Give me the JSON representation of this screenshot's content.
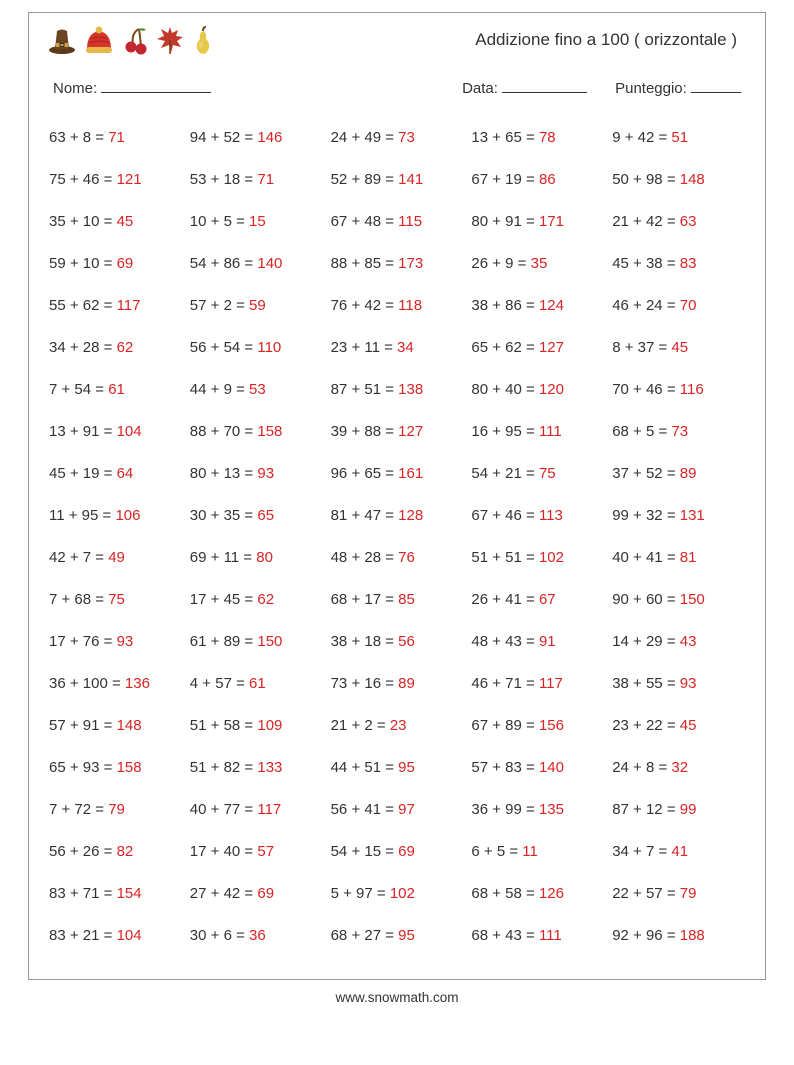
{
  "title": "Addizione fino a 100 ( orizzontale )",
  "labels": {
    "name": "Nome:",
    "date": "Data:",
    "score": "Punteggio:"
  },
  "footer": "www.snowmath.com",
  "answer_color": "#d82424",
  "text_color": "#333333",
  "border_color": "#999999",
  "rows": 20,
  "cols": 5,
  "problems": [
    {
      "a": 63,
      "b": 8,
      "s": 71
    },
    {
      "a": 94,
      "b": 52,
      "s": 146
    },
    {
      "a": 24,
      "b": 49,
      "s": 73
    },
    {
      "a": 13,
      "b": 65,
      "s": 78
    },
    {
      "a": 9,
      "b": 42,
      "s": 51
    },
    {
      "a": 75,
      "b": 46,
      "s": 121
    },
    {
      "a": 53,
      "b": 18,
      "s": 71
    },
    {
      "a": 52,
      "b": 89,
      "s": 141
    },
    {
      "a": 67,
      "b": 19,
      "s": 86
    },
    {
      "a": 50,
      "b": 98,
      "s": 148
    },
    {
      "a": 35,
      "b": 10,
      "s": 45
    },
    {
      "a": 10,
      "b": 5,
      "s": 15
    },
    {
      "a": 67,
      "b": 48,
      "s": 115
    },
    {
      "a": 80,
      "b": 91,
      "s": 171
    },
    {
      "a": 21,
      "b": 42,
      "s": 63
    },
    {
      "a": 59,
      "b": 10,
      "s": 69
    },
    {
      "a": 54,
      "b": 86,
      "s": 140
    },
    {
      "a": 88,
      "b": 85,
      "s": 173
    },
    {
      "a": 26,
      "b": 9,
      "s": 35
    },
    {
      "a": 45,
      "b": 38,
      "s": 83
    },
    {
      "a": 55,
      "b": 62,
      "s": 117
    },
    {
      "a": 57,
      "b": 2,
      "s": 59
    },
    {
      "a": 76,
      "b": 42,
      "s": 118
    },
    {
      "a": 38,
      "b": 86,
      "s": 124
    },
    {
      "a": 46,
      "b": 24,
      "s": 70
    },
    {
      "a": 34,
      "b": 28,
      "s": 62
    },
    {
      "a": 56,
      "b": 54,
      "s": 110
    },
    {
      "a": 23,
      "b": 11,
      "s": 34
    },
    {
      "a": 65,
      "b": 62,
      "s": 127
    },
    {
      "a": 8,
      "b": 37,
      "s": 45
    },
    {
      "a": 7,
      "b": 54,
      "s": 61
    },
    {
      "a": 44,
      "b": 9,
      "s": 53
    },
    {
      "a": 87,
      "b": 51,
      "s": 138
    },
    {
      "a": 80,
      "b": 40,
      "s": 120
    },
    {
      "a": 70,
      "b": 46,
      "s": 116
    },
    {
      "a": 13,
      "b": 91,
      "s": 104
    },
    {
      "a": 88,
      "b": 70,
      "s": 158
    },
    {
      "a": 39,
      "b": 88,
      "s": 127
    },
    {
      "a": 16,
      "b": 95,
      "s": 111
    },
    {
      "a": 68,
      "b": 5,
      "s": 73
    },
    {
      "a": 45,
      "b": 19,
      "s": 64
    },
    {
      "a": 80,
      "b": 13,
      "s": 93
    },
    {
      "a": 96,
      "b": 65,
      "s": 161
    },
    {
      "a": 54,
      "b": 21,
      "s": 75
    },
    {
      "a": 37,
      "b": 52,
      "s": 89
    },
    {
      "a": 11,
      "b": 95,
      "s": 106
    },
    {
      "a": 30,
      "b": 35,
      "s": 65
    },
    {
      "a": 81,
      "b": 47,
      "s": 128
    },
    {
      "a": 67,
      "b": 46,
      "s": 113
    },
    {
      "a": 99,
      "b": 32,
      "s": 131
    },
    {
      "a": 42,
      "b": 7,
      "s": 49
    },
    {
      "a": 69,
      "b": 11,
      "s": 80
    },
    {
      "a": 48,
      "b": 28,
      "s": 76
    },
    {
      "a": 51,
      "b": 51,
      "s": 102
    },
    {
      "a": 40,
      "b": 41,
      "s": 81
    },
    {
      "a": 7,
      "b": 68,
      "s": 75
    },
    {
      "a": 17,
      "b": 45,
      "s": 62
    },
    {
      "a": 68,
      "b": 17,
      "s": 85
    },
    {
      "a": 26,
      "b": 41,
      "s": 67
    },
    {
      "a": 90,
      "b": 60,
      "s": 150
    },
    {
      "a": 17,
      "b": 76,
      "s": 93
    },
    {
      "a": 61,
      "b": 89,
      "s": 150
    },
    {
      "a": 38,
      "b": 18,
      "s": 56
    },
    {
      "a": 48,
      "b": 43,
      "s": 91
    },
    {
      "a": 14,
      "b": 29,
      "s": 43
    },
    {
      "a": 36,
      "b": 100,
      "s": 136
    },
    {
      "a": 4,
      "b": 57,
      "s": 61
    },
    {
      "a": 73,
      "b": 16,
      "s": 89
    },
    {
      "a": 46,
      "b": 71,
      "s": 117
    },
    {
      "a": 38,
      "b": 55,
      "s": 93
    },
    {
      "a": 57,
      "b": 91,
      "s": 148
    },
    {
      "a": 51,
      "b": 58,
      "s": 109
    },
    {
      "a": 21,
      "b": 2,
      "s": 23
    },
    {
      "a": 67,
      "b": 89,
      "s": 156
    },
    {
      "a": 23,
      "b": 22,
      "s": 45
    },
    {
      "a": 65,
      "b": 93,
      "s": 158
    },
    {
      "a": 51,
      "b": 82,
      "s": 133
    },
    {
      "a": 44,
      "b": 51,
      "s": 95
    },
    {
      "a": 57,
      "b": 83,
      "s": 140
    },
    {
      "a": 24,
      "b": 8,
      "s": 32
    },
    {
      "a": 7,
      "b": 72,
      "s": 79
    },
    {
      "a": 40,
      "b": 77,
      "s": 117
    },
    {
      "a": 56,
      "b": 41,
      "s": 97
    },
    {
      "a": 36,
      "b": 99,
      "s": 135
    },
    {
      "a": 87,
      "b": 12,
      "s": 99
    },
    {
      "a": 56,
      "b": 26,
      "s": 82
    },
    {
      "a": 17,
      "b": 40,
      "s": 57
    },
    {
      "a": 54,
      "b": 15,
      "s": 69
    },
    {
      "a": 6,
      "b": 5,
      "s": 11
    },
    {
      "a": 34,
      "b": 7,
      "s": 41
    },
    {
      "a": 83,
      "b": 71,
      "s": 154
    },
    {
      "a": 27,
      "b": 42,
      "s": 69
    },
    {
      "a": 5,
      "b": 97,
      "s": 102
    },
    {
      "a": 68,
      "b": 58,
      "s": 126
    },
    {
      "a": 22,
      "b": 57,
      "s": 79
    },
    {
      "a": 83,
      "b": 21,
      "s": 104
    },
    {
      "a": 30,
      "b": 6,
      "s": 36
    },
    {
      "a": 68,
      "b": 27,
      "s": 95
    },
    {
      "a": 68,
      "b": 43,
      "s": 111
    },
    {
      "a": 92,
      "b": 96,
      "s": 188
    }
  ]
}
